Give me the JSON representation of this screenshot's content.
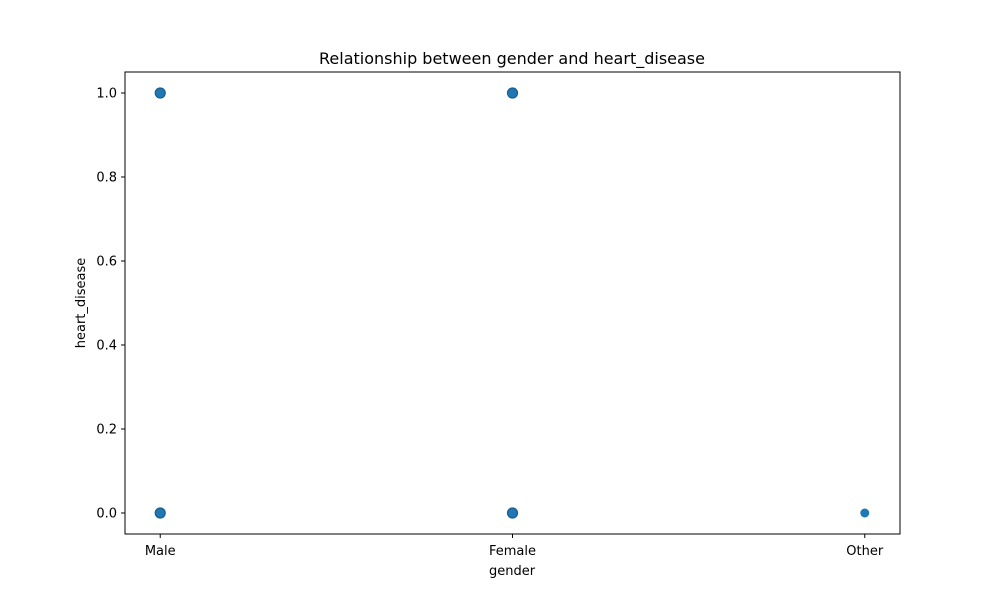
{
  "chart_data": {
    "type": "scatter",
    "title": "Relationship between gender and heart_disease",
    "xlabel": "gender",
    "ylabel": "heart_disease",
    "categories": [
      "Male",
      "Female",
      "Other"
    ],
    "ylim": [
      -0.05,
      1.05
    ],
    "yticks": [
      "0.0",
      "0.2",
      "0.4",
      "0.6",
      "0.8",
      "1.0"
    ],
    "grid": false,
    "marker_color": "#1f77b4",
    "points": [
      {
        "x": "Male",
        "y": 1.0
      },
      {
        "x": "Female",
        "y": 1.0
      },
      {
        "x": "Male",
        "y": 0.0
      },
      {
        "x": "Female",
        "y": 0.0
      },
      {
        "x": "Other",
        "y": 0.0
      }
    ]
  }
}
